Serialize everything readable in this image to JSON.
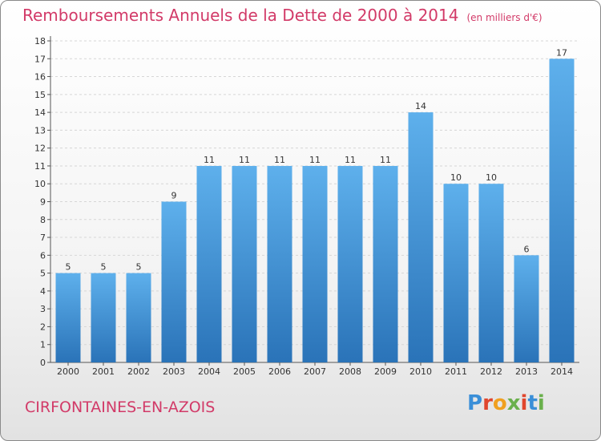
{
  "chart_data": {
    "type": "bar",
    "title": "Remboursements Annuels de la Dette de 2000 à 2014",
    "subtitle": "(en milliers d'€)",
    "categories": [
      "2000",
      "2001",
      "2002",
      "2003",
      "2004",
      "2005",
      "2006",
      "2007",
      "2008",
      "2009",
      "2010",
      "2011",
      "2012",
      "2013",
      "2014"
    ],
    "values": [
      5,
      5,
      5,
      9,
      11,
      11,
      11,
      11,
      11,
      11,
      14,
      10,
      10,
      6,
      17
    ],
    "ylim": [
      0,
      18
    ],
    "yticks": [
      0,
      1,
      2,
      3,
      4,
      5,
      6,
      7,
      8,
      9,
      10,
      11,
      12,
      13,
      14,
      15,
      16,
      17,
      18
    ],
    "xlabel": "",
    "ylabel": "",
    "bar_color": "#3d8fd6"
  },
  "footer": {
    "city": "CIRFONTAINES-EN-AZOIS",
    "logo_letters": [
      "P",
      "r",
      "o",
      "x",
      "i",
      "t",
      "i"
    ],
    "logo_colors": [
      "#3a8fd8",
      "#e0462d",
      "#f0a020",
      "#6ab04c",
      "#e0462d",
      "#3a8fd8",
      "#6ab04c"
    ]
  }
}
